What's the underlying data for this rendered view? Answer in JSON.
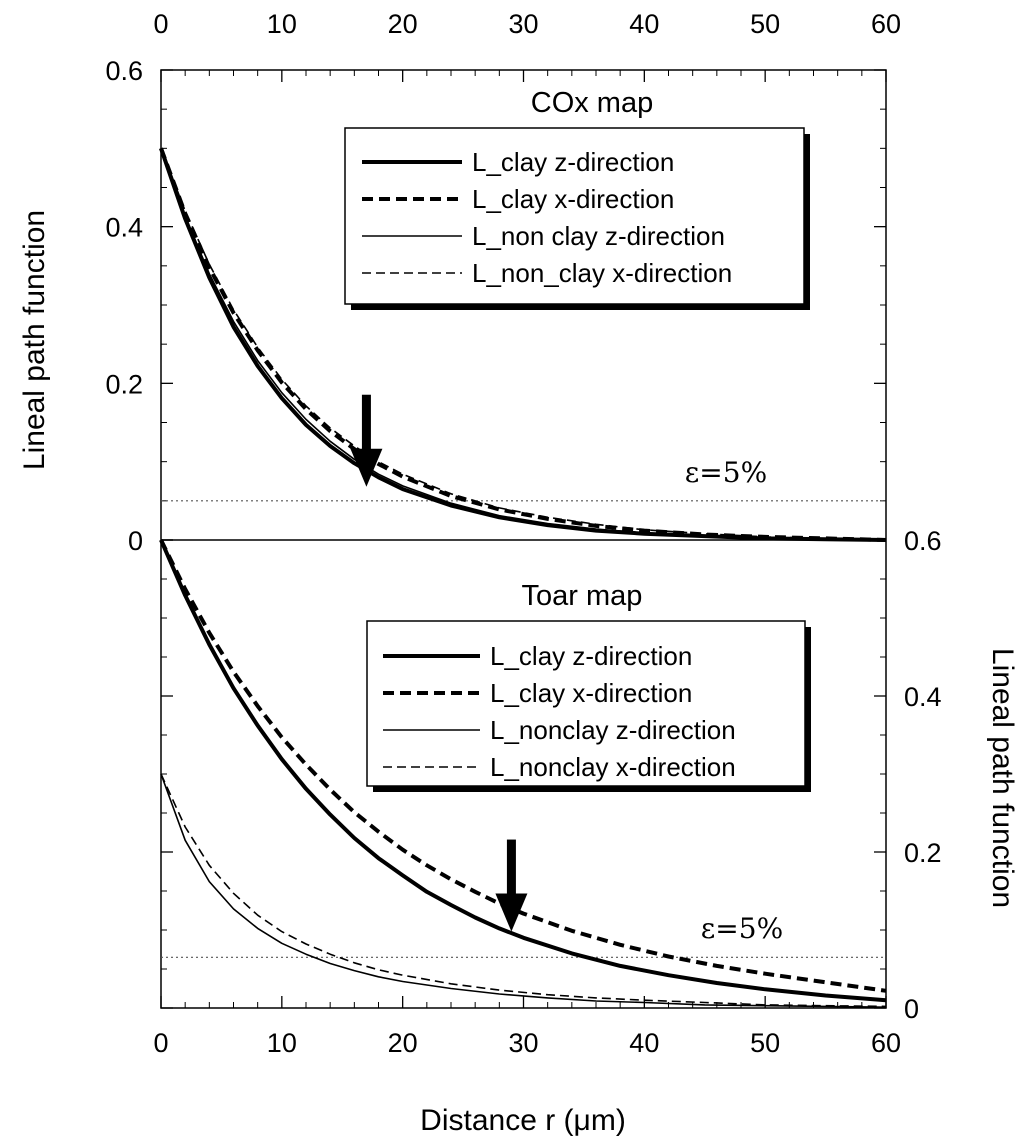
{
  "chart_data": {
    "type": "line",
    "x_axis": {
      "label": "Distance r (μm)",
      "range": [
        0,
        60
      ],
      "ticks": [
        "0",
        "10",
        "20",
        "30",
        "40",
        "50",
        "60"
      ]
    },
    "panels": [
      {
        "id": "cox",
        "title": "COx map",
        "ylabel": "Lineal path function",
        "ylim": [
          0,
          0.6
        ],
        "y_ticks": [
          "0",
          "0.2",
          "0.4",
          "0.6"
        ],
        "y_axis_side": "left",
        "threshold": {
          "label": "ε=5%",
          "y": 0.05
        },
        "arrow_x": 17,
        "legend": [
          "L_clay z-direction",
          "L_clay x-direction",
          "L_non clay z-direction",
          "L_non_clay x-direction"
        ],
        "series": [
          {
            "name": "L_clay z-direction",
            "style": "thick-solid",
            "x": [
              0,
              2,
              4,
              6,
              8,
              10,
              12,
              14,
              16,
              18,
              20,
              24,
              28,
              32,
              36,
              40,
              45,
              50,
              55,
              60
            ],
            "y": [
              0.5,
              0.41,
              0.335,
              0.272,
              0.222,
              0.181,
              0.147,
              0.12,
              0.098,
              0.08,
              0.065,
              0.044,
              0.029,
              0.019,
              0.012,
              0.008,
              0.005,
              0.002,
              0.001,
              0.0
            ]
          },
          {
            "name": "L_clay x-direction",
            "style": "thick-dashed",
            "x": [
              0,
              2,
              4,
              6,
              8,
              10,
              12,
              14,
              16,
              18,
              20,
              24,
              28,
              32,
              36,
              40,
              45,
              50,
              55,
              60
            ],
            "y": [
              0.5,
              0.417,
              0.348,
              0.29,
              0.242,
              0.201,
              0.167,
              0.139,
              0.116,
              0.097,
              0.081,
              0.056,
              0.039,
              0.027,
              0.018,
              0.012,
              0.007,
              0.004,
              0.002,
              0.0
            ]
          },
          {
            "name": "L_non clay z-direction",
            "style": "thin-solid",
            "x": [
              0,
              2,
              4,
              6,
              8,
              10,
              12,
              14,
              16,
              18,
              20,
              24,
              28,
              32,
              36,
              40,
              45,
              50,
              55,
              60
            ],
            "y": [
              0.5,
              0.413,
              0.34,
              0.279,
              0.229,
              0.188,
              0.154,
              0.126,
              0.103,
              0.084,
              0.069,
              0.047,
              0.031,
              0.021,
              0.014,
              0.009,
              0.005,
              0.003,
              0.001,
              0.0
            ]
          },
          {
            "name": "L_non_clay x-direction",
            "style": "thin-dashed",
            "x": [
              0,
              2,
              4,
              6,
              8,
              10,
              12,
              14,
              16,
              18,
              20,
              24,
              28,
              32,
              36,
              40,
              45,
              50,
              55,
              60
            ],
            "y": [
              0.5,
              0.42,
              0.352,
              0.294,
              0.246,
              0.205,
              0.171,
              0.143,
              0.12,
              0.1,
              0.084,
              0.059,
              0.041,
              0.029,
              0.02,
              0.013,
              0.008,
              0.004,
              0.002,
              0.0
            ]
          }
        ]
      },
      {
        "id": "toar",
        "title": "Toar map",
        "ylabel": "Lineal path function",
        "ylim": [
          0,
          0.6
        ],
        "y_ticks": [
          "0",
          "0.2",
          "0.4",
          "0.6"
        ],
        "y_axis_side": "right",
        "threshold": {
          "label": "ε=5%",
          "y": 0.065
        },
        "arrow_x": 29,
        "legend": [
          "L_clay z-direction",
          "L_clay x-direction",
          "L_nonclay z-direction",
          "L_nonclay x-direction"
        ],
        "series": [
          {
            "name": "L_clay z-direction",
            "style": "thick-solid",
            "x": [
              0,
              2,
              4,
              6,
              8,
              10,
              12,
              14,
              16,
              18,
              20,
              22,
              24,
              26,
              28,
              30,
              34,
              38,
              42,
              46,
              50,
              55,
              60
            ],
            "y": [
              0.6,
              0.529,
              0.466,
              0.41,
              0.362,
              0.319,
              0.281,
              0.248,
              0.218,
              0.192,
              0.17,
              0.149,
              0.132,
              0.116,
              0.102,
              0.09,
              0.07,
              0.054,
              0.042,
              0.032,
              0.024,
              0.016,
              0.01
            ]
          },
          {
            "name": "L_clay x-direction",
            "style": "thick-dashed",
            "x": [
              0,
              2,
              4,
              6,
              8,
              10,
              12,
              14,
              16,
              18,
              20,
              22,
              24,
              26,
              28,
              30,
              34,
              38,
              42,
              46,
              50,
              55,
              60
            ],
            "y": [
              0.6,
              0.537,
              0.481,
              0.431,
              0.387,
              0.347,
              0.312,
              0.28,
              0.251,
              0.226,
              0.203,
              0.183,
              0.165,
              0.149,
              0.134,
              0.121,
              0.099,
              0.081,
              0.066,
              0.054,
              0.044,
              0.033,
              0.022
            ]
          },
          {
            "name": "L_nonclay z-direction",
            "style": "thin-solid",
            "x": [
              0,
              2,
              4,
              6,
              8,
              10,
              12,
              14,
              16,
              18,
              20,
              24,
              28,
              32,
              36,
              40,
              45,
              50,
              55,
              60
            ],
            "y": [
              0.3,
              0.215,
              0.162,
              0.127,
              0.102,
              0.083,
              0.069,
              0.057,
              0.048,
              0.04,
              0.034,
              0.025,
              0.018,
              0.013,
              0.009,
              0.007,
              0.004,
              0.003,
              0.002,
              0.001
            ]
          },
          {
            "name": "L_nonclay x-direction",
            "style": "thin-dashed",
            "x": [
              0,
              2,
              4,
              6,
              8,
              10,
              12,
              14,
              16,
              18,
              20,
              24,
              28,
              32,
              36,
              40,
              45,
              50,
              55,
              60
            ],
            "y": [
              0.3,
              0.232,
              0.183,
              0.147,
              0.119,
              0.098,
              0.082,
              0.069,
              0.058,
              0.049,
              0.042,
              0.031,
              0.023,
              0.017,
              0.013,
              0.01,
              0.007,
              0.004,
              0.003,
              0.002
            ]
          }
        ]
      }
    ]
  }
}
